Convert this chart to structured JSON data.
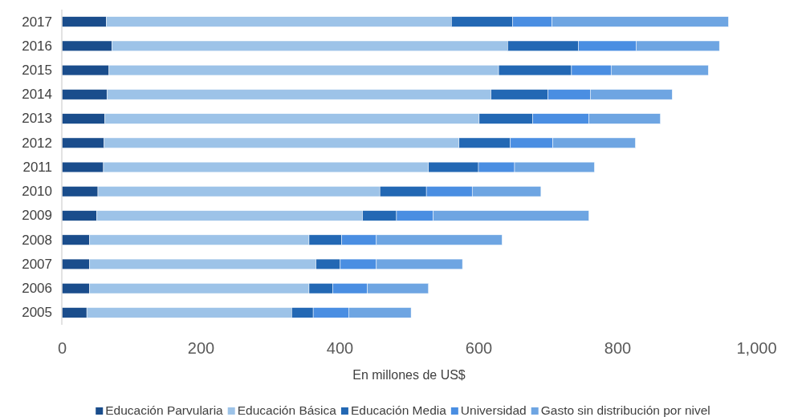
{
  "chart_data": {
    "type": "bar",
    "orientation": "horizontal",
    "stacked": true,
    "xlabel": "En millones de US$",
    "categories": [
      "2017",
      "2016",
      "2015",
      "2014",
      "2013",
      "2012",
      "2011",
      "2010",
      "2009",
      "2008",
      "2007",
      "2006",
      "2005"
    ],
    "series": [
      {
        "name": "Educación Parvularia",
        "color": "#1a4d8c",
        "values": [
          64,
          72,
          68,
          65,
          62,
          61,
          60,
          52,
          50,
          40,
          40,
          40,
          36
        ]
      },
      {
        "name": "Educación Básica",
        "color": "#9dc3e8",
        "values": [
          497,
          570,
          561,
          553,
          539,
          511,
          468,
          406,
          383,
          316,
          326,
          316,
          295
        ]
      },
      {
        "name": "Educación Media",
        "color": "#2368b4",
        "values": [
          88,
          102,
          105,
          82,
          77,
          74,
          72,
          67,
          49,
          47,
          35,
          34,
          31
        ]
      },
      {
        "name": "Universidad",
        "color": "#4a8ee2",
        "values": [
          57,
          83,
          57,
          61,
          81,
          61,
          52,
          66,
          53,
          50,
          52,
          50,
          51
        ]
      },
      {
        "name": "Gasto sin distribución por nivel",
        "color": "#6ea5e2",
        "values": [
          254,
          120,
          140,
          118,
          103,
          119,
          115,
          99,
          224,
          181,
          124,
          88,
          90
        ]
      }
    ],
    "xlim": [
      0,
      1000
    ],
    "xticks": [
      0,
      200,
      400,
      600,
      800,
      {
        "value": 1000,
        "label": "1,000"
      }
    ],
    "grid": false,
    "legend": "bottom"
  }
}
